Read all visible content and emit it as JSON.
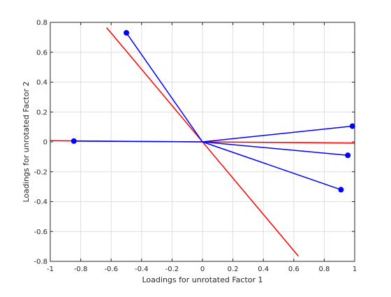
{
  "chart_data": {
    "type": "scatter",
    "title": "",
    "xlabel": "Loadings for unrotated Factor 1",
    "ylabel": "Loadings for unrotated Factor 2",
    "xlim": [
      -1,
      1
    ],
    "ylim": [
      -0.8,
      0.8
    ],
    "grid": true,
    "x_ticks": [
      -1,
      -0.8,
      -0.6,
      -0.4,
      -0.2,
      0,
      0.2,
      0.4,
      0.6,
      0.8,
      1
    ],
    "x_tick_labels": [
      "-1",
      "-0.8",
      "-0.6",
      "-0.4",
      "-0.2",
      "0",
      "0.2",
      "0.4",
      "0.6",
      "0.8",
      "1"
    ],
    "y_ticks": [
      -0.8,
      -0.6,
      -0.4,
      -0.2,
      0,
      0.2,
      0.4,
      0.6,
      0.8
    ],
    "y_tick_labels": [
      "-0.8",
      "-0.6",
      "-0.4",
      "-0.2",
      "0",
      "0.2",
      "0.4",
      "0.6",
      "0.8"
    ],
    "loadings": {
      "color": "#0000ff",
      "points": [
        {
          "x": -0.5,
          "y": 0.73
        },
        {
          "x": -0.845,
          "y": 0.005
        },
        {
          "x": 0.985,
          "y": 0.105
        },
        {
          "x": 0.955,
          "y": -0.09
        },
        {
          "x": 0.91,
          "y": -0.32
        }
      ]
    },
    "axes_lines": {
      "color": "#ff0000",
      "lines": [
        {
          "x": [
            -1,
            1
          ],
          "y": [
            0.008,
            -0.008
          ]
        },
        {
          "x": [
            -0.63,
            0.63
          ],
          "y": [
            0.765,
            -0.765
          ]
        }
      ]
    }
  }
}
